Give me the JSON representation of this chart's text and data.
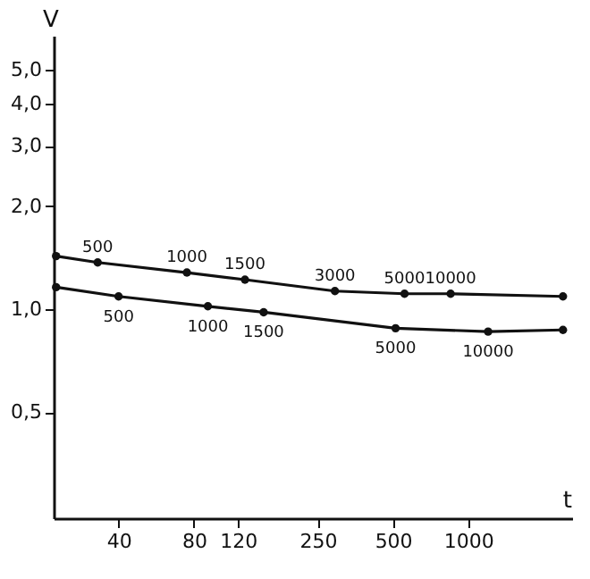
{
  "chart_data": {
    "type": "line",
    "xlabel": "t",
    "ylabel": "V",
    "log": "xy",
    "grid": false,
    "marker": "circle",
    "line_style": "solid",
    "xlim": [
      22,
      2600
    ],
    "ylim": [
      0.245,
      6.3
    ],
    "xticks": [
      40,
      80,
      120,
      250,
      500,
      1000
    ],
    "yticks": [
      {
        "value": 0.5,
        "label": "0,5"
      },
      {
        "value": 1,
        "label": "1,0"
      },
      {
        "value": 2,
        "label": "2,0"
      },
      {
        "value": 3,
        "label": "3,0"
      },
      {
        "value": 4,
        "label": "4,0"
      },
      {
        "value": 5,
        "label": "5,0"
      }
    ],
    "series": [
      {
        "color": "#111111",
        "x": [
          22.5,
          33,
          75,
          128,
          293,
          556,
          850,
          2390
        ],
        "values": [
          1.43,
          1.37,
          1.28,
          1.22,
          1.13,
          1.11,
          1.11,
          1.09
        ]
      },
      {
        "color": "#111111",
        "x": [
          22.5,
          40,
          91,
          152,
          512,
          1200,
          2390
        ],
        "values": [
          1.16,
          1.09,
          1.02,
          0.98,
          0.88,
          0.86,
          0.87
        ]
      }
    ],
    "annotations": [
      {
        "text": "500",
        "x": 33,
        "y": 1.37
      },
      {
        "text": "1000",
        "x": 75,
        "y": 1.28
      },
      {
        "text": "1500",
        "x": 128,
        "y": 1.22
      },
      {
        "text": "3000",
        "x": 293,
        "y": 1.13
      },
      {
        "text": "5000",
        "x": 556,
        "y": 1.11
      },
      {
        "text": "10000",
        "x": 850,
        "y": 1.11
      },
      {
        "text": "500",
        "x": 40,
        "y": 1.09
      },
      {
        "text": "1000",
        "x": 91,
        "y": 1.02
      },
      {
        "text": "1500",
        "x": 152,
        "y": 0.98
      },
      {
        "text": "5000",
        "x": 512,
        "y": 0.88
      },
      {
        "text": "10000",
        "x": 1200,
        "y": 0.86
      }
    ]
  }
}
